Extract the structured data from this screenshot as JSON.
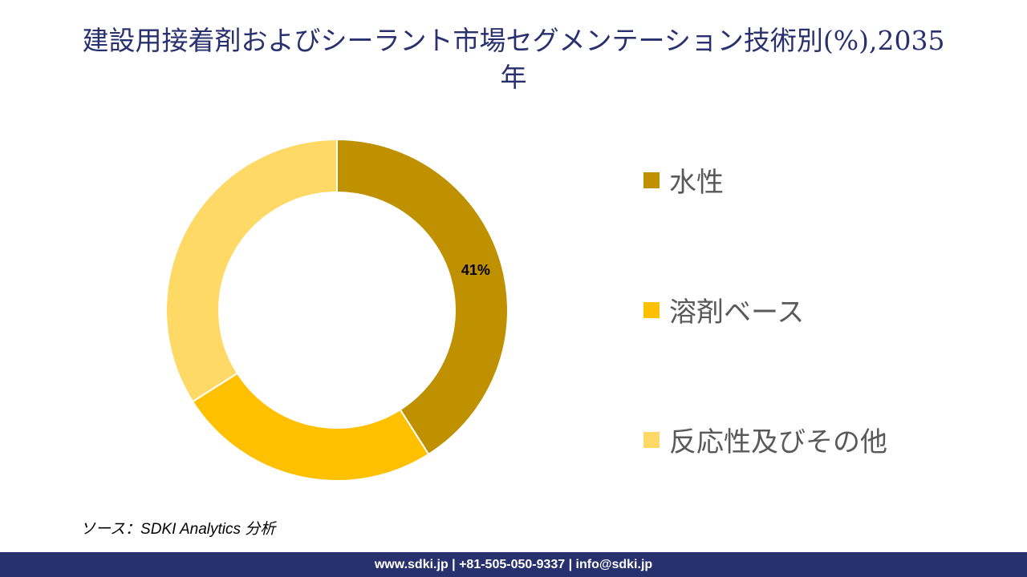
{
  "title": {
    "line1": "建設用接着剤およびシーラント市場セグメンテーション技術別(%),2035",
    "line2": "年"
  },
  "chart_data": {
    "type": "pie",
    "variant": "donut",
    "title": "建設用接着剤およびシーラント市場セグメンテーション技術別(%),2035年",
    "categories": [
      "水性",
      "溶剤ベース",
      "反応性及びその他"
    ],
    "values": [
      41,
      25,
      34
    ],
    "colors": [
      "#bf9000",
      "#ffc000",
      "#ffd966"
    ],
    "data_labels": [
      "41%",
      "",
      ""
    ],
    "legend_position": "right",
    "unit": "%"
  },
  "legend": {
    "items": [
      {
        "label": "水性",
        "color": "#bf9000"
      },
      {
        "label": "溶剤ベース",
        "color": "#ffc000"
      },
      {
        "label": "反応性及びその他",
        "color": "#ffd966"
      }
    ]
  },
  "source": "ソース：SDKI Analytics 分析",
  "footer": "www.sdki.jp | +81-505-050-9337 | info@sdki.jp",
  "colors": {
    "title": "#28306e",
    "footer_bg": "#28306e"
  }
}
